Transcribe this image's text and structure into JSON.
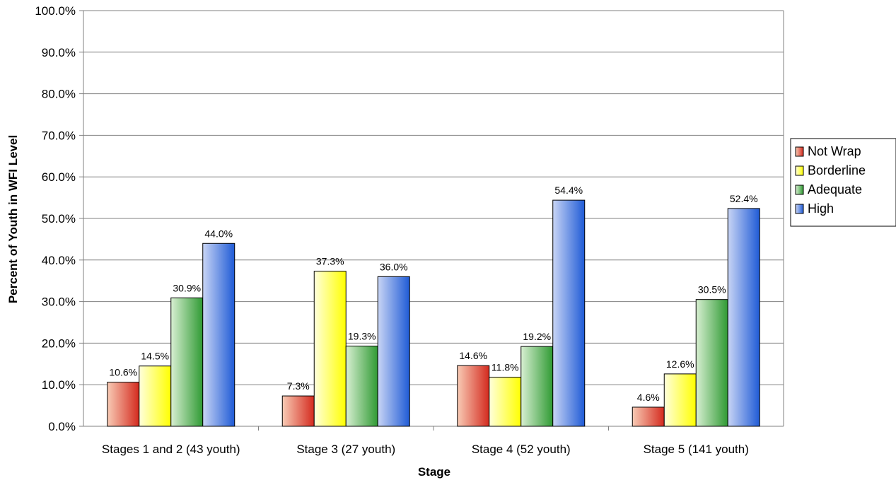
{
  "chart_data": {
    "type": "bar",
    "title": "",
    "xlabel": "Stage",
    "ylabel": "Percent of Youth in WFI Level",
    "ylim": [
      0,
      100
    ],
    "ytick_step": 10,
    "y_format": "percent_1dp",
    "grid": true,
    "legend_position": "right",
    "categories": [
      "Stages 1 and 2 (43 youth)",
      "Stage 3 (27 youth)",
      "Stage 4 (52 youth)",
      "Stage 5 (141 youth)"
    ],
    "series": [
      {
        "name": "Not Wrap",
        "color": "#d42a1e",
        "light": "#f8cbb5",
        "values": [
          10.6,
          7.3,
          14.6,
          4.6
        ],
        "labels": [
          "10.6%",
          "7.3%",
          "14.6%",
          "4.6%"
        ]
      },
      {
        "name": "Borderline",
        "color": "#ffff00",
        "light": "#ffffdc",
        "values": [
          14.5,
          37.3,
          11.8,
          12.6
        ],
        "labels": [
          "14.5%",
          "37.3%",
          "11.8%",
          "12.6%"
        ]
      },
      {
        "name": "Adequate",
        "color": "#2f9a33",
        "light": "#d8efd2",
        "values": [
          30.9,
          19.3,
          19.2,
          30.5
        ],
        "labels": [
          "30.9%",
          "19.3%",
          "19.2%",
          "30.5%"
        ]
      },
      {
        "name": "High",
        "color": "#1f5bd6",
        "light": "#c9d5f5",
        "values": [
          44.0,
          36.0,
          54.4,
          52.4
        ],
        "labels": [
          "44.0%",
          "36.0%",
          "54.4%",
          "52.4%"
        ]
      }
    ]
  }
}
